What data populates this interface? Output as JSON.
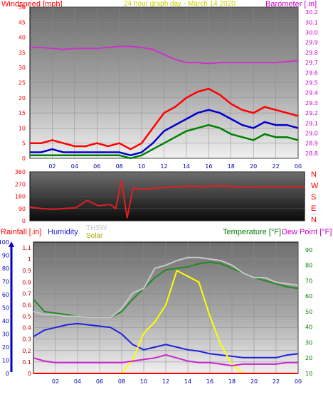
{
  "header": {
    "windspeed_label": "Windspeed [mph]",
    "title": "24 hour graph day - March 14 2020",
    "barometer_label": "Barometer [.in]"
  },
  "direction_axis": {
    "letters": [
      "N",
      "W",
      "S",
      "E",
      "N"
    ]
  },
  "bottom_header": {
    "rainfall_label": "Rainfall [.in]",
    "humidity_label": "Humidity",
    "thsw_label": "THSW",
    "solar_label": "Solar",
    "temperature_label": "Temperature [°F]",
    "dewpoint_label": "Dew Point [°F]"
  },
  "colors": {
    "wind_gust": "#ff0000",
    "wind_avg": "#0000cc",
    "wind_low": "#008000",
    "barometer": "#cc33cc",
    "direction": "#e02020",
    "temperature": "#228b22",
    "thsw": "#c8c8c8",
    "humidity": "#2020dd",
    "solar": "#ffff00",
    "dewpoint": "#cc22cc",
    "rainfall": "#ff0000"
  },
  "chart_data": [
    {
      "type": "line",
      "title": "24 hour graph day - March 14 2020",
      "x_ticks": [
        "02",
        "04",
        "06",
        "08",
        "10",
        "12",
        "14",
        "16",
        "18",
        "20",
        "22",
        "00"
      ],
      "y_left_label": "Windspeed [mph]",
      "y_left_ticks": [
        0,
        5,
        10,
        15,
        20,
        25,
        30,
        35,
        40,
        45,
        50
      ],
      "y_left_lim": [
        0,
        50
      ],
      "y_right_label": "Barometer [.in]",
      "y_right_ticks": [
        28.8,
        28.9,
        29.0,
        29.1,
        29.2,
        29.3,
        29.4,
        29.5,
        29.6,
        29.7,
        29.8,
        29.9,
        30.0,
        30.1,
        30.2
      ],
      "y_right_lim": [
        28.75,
        30.25
      ],
      "x": [
        0,
        1,
        2,
        3,
        4,
        5,
        6,
        7,
        8,
        9,
        10,
        11,
        12,
        13,
        14,
        15,
        16,
        17,
        18,
        19,
        20,
        21,
        22,
        23,
        24
      ],
      "series": [
        {
          "values": [
            5,
            5,
            6,
            5,
            4,
            4,
            5,
            4,
            5,
            3,
            5,
            10,
            15,
            17,
            20,
            22,
            23,
            21,
            18,
            16,
            15,
            17,
            16,
            15,
            14
          ]
        },
        {
          "values": [
            2,
            2,
            3,
            2,
            2,
            2,
            2,
            2,
            2,
            1,
            2,
            5,
            9,
            11,
            13,
            15,
            16,
            15,
            13,
            11,
            10,
            12,
            11,
            11,
            10
          ]
        },
        {
          "values": [
            1,
            1,
            1,
            1,
            1,
            1,
            1,
            1,
            1,
            0,
            1,
            3,
            5,
            7,
            9,
            10,
            11,
            10,
            8,
            7,
            6,
            8,
            7,
            7,
            6
          ]
        },
        {
          "values": [
            29.85,
            29.85,
            29.84,
            29.83,
            29.84,
            29.84,
            29.84,
            29.85,
            29.86,
            29.86,
            29.85,
            29.83,
            29.78,
            29.73,
            29.7,
            29.7,
            29.69,
            29.7,
            29.7,
            29.7,
            29.7,
            29.7,
            29.7,
            29.71,
            29.72
          ]
        }
      ]
    },
    {
      "type": "line",
      "y_ticks": [
        0,
        90,
        180,
        270,
        360
      ],
      "y_lim": [
        0,
        360
      ],
      "x": [
        0,
        1,
        2,
        3,
        4,
        5,
        6,
        7,
        7.5,
        8,
        8.5,
        9,
        10,
        11,
        12,
        13,
        14,
        15,
        16,
        17,
        18,
        19,
        20,
        21,
        22,
        23,
        24
      ],
      "series": [
        {
          "values": [
            100,
            90,
            85,
            90,
            95,
            150,
            110,
            120,
            90,
            300,
            20,
            240,
            230,
            240,
            245,
            250,
            255,
            250,
            255,
            255,
            250,
            248,
            250,
            252,
            250,
            252,
            250
          ]
        }
      ]
    },
    {
      "type": "line",
      "x_ticks": [
        "02",
        "04",
        "06",
        "08",
        "10",
        "12",
        "14",
        "16",
        "18",
        "20",
        "22",
        "00"
      ],
      "y_left_ticks": [
        0,
        10,
        20,
        30,
        40,
        50,
        60,
        70,
        80,
        90,
        100
      ],
      "y_left_lim": [
        0,
        100
      ],
      "y_rain_ticks": [
        0,
        0.1,
        0.2,
        0.3,
        0.4,
        0.5,
        0.6,
        0.7,
        0.8,
        0.9,
        1,
        1.1
      ],
      "y_rain_lim": [
        0,
        1.15
      ],
      "y_right_ticks": [
        10,
        20,
        30,
        40,
        50,
        60,
        70,
        80,
        90
      ],
      "y_right_lim": [
        10,
        95
      ],
      "x": [
        0,
        1,
        2,
        3,
        4,
        5,
        6,
        7,
        8,
        9,
        10,
        11,
        12,
        13,
        14,
        15,
        16,
        17,
        18,
        19,
        20,
        21,
        22,
        23,
        24
      ],
      "series": [
        {
          "values": [
            58,
            50,
            49,
            48,
            47,
            46,
            46,
            46,
            50,
            58,
            65,
            72,
            77,
            78,
            79,
            81,
            82,
            81,
            78,
            75,
            72,
            70,
            68,
            66,
            65
          ]
        },
        {
          "values": [
            50,
            48,
            48,
            47,
            47,
            46,
            46,
            46,
            52,
            62,
            65,
            78,
            80,
            83,
            85,
            85,
            84,
            83,
            80,
            75,
            72,
            72,
            69,
            68,
            67
          ]
        },
        {
          "values": [
            28,
            33,
            35,
            37,
            38,
            37,
            36,
            35,
            30,
            22,
            18,
            20,
            22,
            20,
            18,
            17,
            15,
            14,
            13,
            12,
            12,
            12,
            12,
            14,
            15
          ]
        },
        {
          "values": [
            0,
            0,
            0,
            0,
            0,
            0,
            0,
            0,
            0,
            0.12,
            0.35,
            0.45,
            0.6,
            0.9,
            0.85,
            0.8,
            0.5,
            0.25,
            0.08,
            0,
            0,
            0,
            0,
            0,
            0
          ]
        },
        {
          "values": [
            20,
            18,
            17,
            17,
            17,
            17,
            17,
            17,
            17,
            18,
            19,
            20,
            22,
            20,
            18,
            17,
            17,
            16,
            15,
            16,
            16,
            16,
            16,
            17,
            17
          ]
        },
        {
          "values": [
            0,
            0,
            0,
            0,
            0,
            0,
            0,
            0,
            0,
            0,
            0,
            0,
            0,
            0,
            0,
            0,
            0,
            0,
            0,
            0,
            0,
            0,
            0,
            0,
            0
          ]
        }
      ]
    }
  ]
}
